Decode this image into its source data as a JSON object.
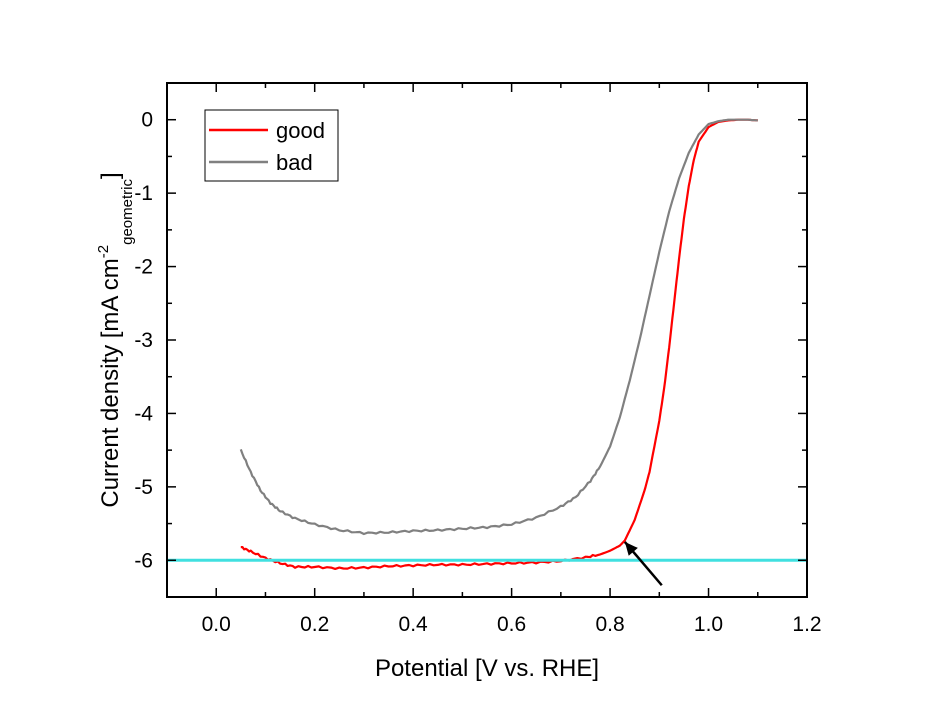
{
  "chart_data": {
    "type": "line",
    "xlabel": "Potential [V vs. RHE]",
    "ylabel": {
      "main": "Current density [mA cm",
      "sup": "-2",
      "sub": "geometric",
      "end": "]"
    },
    "xlim": [
      -0.1,
      1.2
    ],
    "ylim": [
      -6.5,
      0.5
    ],
    "xticks": [
      "0.0",
      "0.2",
      "0.4",
      "0.6",
      "0.8",
      "1.0",
      "1.2"
    ],
    "yticks": [
      "0",
      "-1",
      "-2",
      "-3",
      "-4",
      "-5",
      "-6"
    ],
    "grid": false,
    "legend_position": "top-left",
    "series": [
      {
        "name": "good",
        "color": "#ff0000",
        "x": [
          0.05,
          0.07,
          0.1,
          0.13,
          0.16,
          0.2,
          0.25,
          0.3,
          0.35,
          0.4,
          0.45,
          0.5,
          0.55,
          0.6,
          0.65,
          0.7,
          0.75,
          0.78,
          0.8,
          0.82,
          0.83,
          0.85,
          0.87,
          0.88,
          0.9,
          0.91,
          0.92,
          0.93,
          0.94,
          0.95,
          0.96,
          0.97,
          0.98,
          1.0,
          1.02,
          1.04,
          1.06,
          1.08,
          1.1
        ],
        "y": [
          -5.82,
          -5.88,
          -5.97,
          -6.04,
          -6.09,
          -6.09,
          -6.11,
          -6.1,
          -6.08,
          -6.07,
          -6.06,
          -6.06,
          -6.05,
          -6.04,
          -6.03,
          -6.01,
          -5.96,
          -5.92,
          -5.87,
          -5.8,
          -5.73,
          -5.45,
          -5.05,
          -4.8,
          -4.1,
          -3.65,
          -3.1,
          -2.5,
          -1.9,
          -1.35,
          -0.9,
          -0.55,
          -0.3,
          -0.1,
          -0.03,
          -0.01,
          0.0,
          0.0,
          -0.01
        ]
      },
      {
        "name": "bad",
        "color": "#808080",
        "x": [
          0.05,
          0.07,
          0.09,
          0.11,
          0.13,
          0.16,
          0.2,
          0.25,
          0.3,
          0.35,
          0.4,
          0.45,
          0.5,
          0.55,
          0.6,
          0.65,
          0.7,
          0.73,
          0.76,
          0.78,
          0.8,
          0.82,
          0.84,
          0.86,
          0.88,
          0.9,
          0.92,
          0.94,
          0.96,
          0.98,
          1.0,
          1.02,
          1.04,
          1.06,
          1.08,
          1.1
        ],
        "y": [
          -4.5,
          -4.8,
          -5.05,
          -5.22,
          -5.33,
          -5.43,
          -5.51,
          -5.59,
          -5.63,
          -5.62,
          -5.6,
          -5.59,
          -5.57,
          -5.55,
          -5.51,
          -5.42,
          -5.27,
          -5.14,
          -4.92,
          -4.72,
          -4.45,
          -4.05,
          -3.55,
          -3.0,
          -2.4,
          -1.8,
          -1.25,
          -0.8,
          -0.45,
          -0.2,
          -0.06,
          -0.02,
          0.0,
          0.0,
          0.0,
          -0.01
        ]
      }
    ],
    "annotations": [
      {
        "type": "hline",
        "y": -6.0,
        "color": "#40e0e0"
      },
      {
        "type": "arrow",
        "from": [
          0.905,
          -6.34
        ],
        "to": [
          0.83,
          -5.75
        ],
        "color": "#000000"
      }
    ]
  }
}
